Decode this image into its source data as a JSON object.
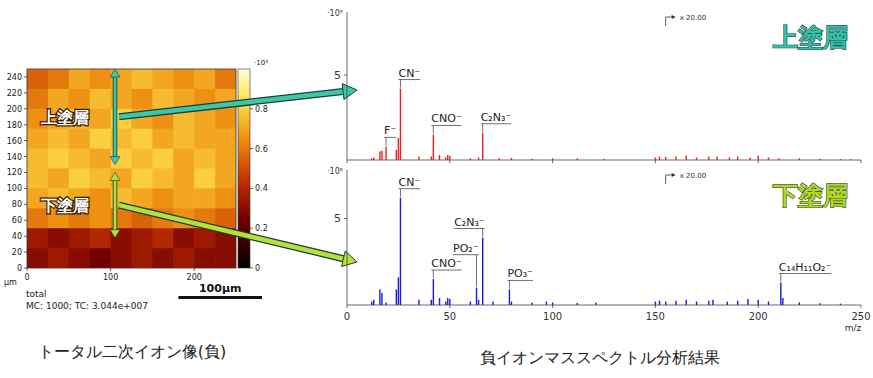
{
  "figure_caption": "負イオンマススペクトル分析結果",
  "chart_data": [
    {
      "type": "heatmap",
      "title": "トータル二次イオン像(負)",
      "x_label": "µm",
      "xlim": [
        0,
        250
      ],
      "ylim": [
        0,
        250
      ],
      "xticks": [
        0,
        100,
        200
      ],
      "yticks": [
        0,
        20,
        40,
        60,
        80,
        100,
        120,
        140,
        160,
        180,
        200,
        220,
        240
      ],
      "x": [
        12.5,
        37.5,
        62.5,
        87.5,
        112.5,
        137.5,
        162.5,
        187.5,
        212.5,
        237.5
      ],
      "y": [
        237.5,
        212.5,
        187.5,
        162.5,
        137.5,
        112.5,
        87.5,
        62.5,
        37.5,
        12.5
      ],
      "cells": [
        [
          0.55,
          0.6,
          0.7,
          0.65,
          0.7,
          0.75,
          0.7,
          0.65,
          0.7,
          0.6
        ],
        [
          0.6,
          0.7,
          0.65,
          0.75,
          0.7,
          0.65,
          0.75,
          0.7,
          0.65,
          0.7
        ],
        [
          0.65,
          0.7,
          0.75,
          0.7,
          0.8,
          0.7,
          0.65,
          0.75,
          0.7,
          0.65
        ],
        [
          0.7,
          0.75,
          0.7,
          0.8,
          0.75,
          0.8,
          0.7,
          0.75,
          0.7,
          0.7
        ],
        [
          0.75,
          0.8,
          0.75,
          0.7,
          0.8,
          0.75,
          0.8,
          0.7,
          0.75,
          0.7
        ],
        [
          0.75,
          0.7,
          0.8,
          0.75,
          0.7,
          0.8,
          0.75,
          0.7,
          0.8,
          0.7
        ],
        [
          0.7,
          0.75,
          0.7,
          0.65,
          0.75,
          0.7,
          0.65,
          0.7,
          0.7,
          0.65
        ],
        [
          0.6,
          0.65,
          0.6,
          0.65,
          0.6,
          0.55,
          0.6,
          0.65,
          0.6,
          0.55
        ],
        [
          0.35,
          0.3,
          0.35,
          0.4,
          0.3,
          0.35,
          0.4,
          0.3,
          0.35,
          0.3
        ],
        [
          0.3,
          0.35,
          0.3,
          0.25,
          0.3,
          0.35,
          0.3,
          0.35,
          0.3,
          0.3
        ]
      ],
      "colorbar": {
        "range": [
          0,
          1
        ],
        "ticks": [
          0,
          0.2,
          0.4,
          0.6,
          0.8
        ],
        "label": "·10³"
      },
      "annotations": [
        "total",
        "MC: 1000; TC: 3.044e+007"
      ],
      "scale_bar": {
        "length": 100,
        "label": "100µm"
      },
      "layers": [
        {
          "label": "上塗層",
          "range": [
            130,
            250
          ]
        },
        {
          "label": "下塗層",
          "range": [
            38,
            120
          ]
        }
      ]
    },
    {
      "type": "stem",
      "title": "上塗層",
      "color": "#e8211f",
      "y_label": "·10⁵",
      "xlim": [
        0,
        250
      ],
      "xticks": [
        0,
        50,
        100,
        150,
        200,
        250
      ],
      "ylim": [
        0,
        8.7
      ],
      "yticks": [
        5
      ],
      "tick_labels": "y",
      "x": [
        12,
        13,
        16,
        17,
        19,
        24,
        25,
        26,
        35,
        41,
        42,
        45,
        48,
        49,
        50,
        60,
        64,
        66,
        74,
        80,
        90,
        100,
        112,
        125,
        150,
        152,
        155,
        160,
        165,
        170,
        176,
        180,
        186,
        190,
        196,
        200,
        205,
        210,
        220,
        230,
        240,
        245
      ],
      "values": [
        0.1,
        0.15,
        0.5,
        0.55,
        0.8,
        0.6,
        1.3,
        4.2,
        0.2,
        0.2,
        1.5,
        0.3,
        0.15,
        0.3,
        0.25,
        0.1,
        0.15,
        1.6,
        0.1,
        0.12,
        0.08,
        0.1,
        0.1,
        0.06,
        0.15,
        0.2,
        0.18,
        0.2,
        0.25,
        0.15,
        0.2,
        0.2,
        0.15,
        0.2,
        0.15,
        0.25,
        0.15,
        0.1,
        0.1,
        0.08,
        0.06,
        0.05
      ],
      "peak_labels": [
        {
          "x": 19,
          "label": "F⁻"
        },
        {
          "x": 26,
          "label": "CN⁻"
        },
        {
          "x": 42,
          "label": "CNO⁻"
        },
        {
          "x": 66,
          "label": "C₂N₃⁻"
        }
      ],
      "annotations": [
        {
          "x": 155,
          "label": "x 20.00"
        }
      ]
    },
    {
      "type": "stem",
      "title": "下塗層",
      "color": "#1a1adb",
      "y_label": "·10⁵",
      "x_label": "m/z",
      "xlim": [
        0,
        250
      ],
      "xticks": [
        0,
        50,
        100,
        150,
        200,
        250
      ],
      "ylim": [
        0,
        7.8
      ],
      "yticks": [
        5
      ],
      "x": [
        12,
        13,
        16,
        17,
        19,
        24,
        25,
        26,
        35,
        41,
        42,
        45,
        48,
        49,
        50,
        60,
        63,
        64,
        66,
        71,
        79,
        80,
        90,
        97,
        100,
        112,
        121,
        150,
        152,
        155,
        160,
        165,
        170,
        176,
        178,
        185,
        190,
        195,
        200,
        205,
        211,
        212,
        220,
        230,
        240
      ],
      "values": [
        0.2,
        0.3,
        0.9,
        0.7,
        0.15,
        0.9,
        1.6,
        6.2,
        0.3,
        0.3,
        1.5,
        0.4,
        0.2,
        0.4,
        0.35,
        0.2,
        1.0,
        0.3,
        3.9,
        0.2,
        0.9,
        0.2,
        0.15,
        0.2,
        0.15,
        0.12,
        0.15,
        0.2,
        0.25,
        0.2,
        0.25,
        0.3,
        0.2,
        0.25,
        0.3,
        0.2,
        0.25,
        0.35,
        0.3,
        0.2,
        1.3,
        0.4,
        0.15,
        0.1,
        0.08
      ],
      "peak_labels": [
        {
          "x": 26,
          "label": "CN⁻"
        },
        {
          "x": 42,
          "label": "CNO⁻"
        },
        {
          "x": 63,
          "label": "PO₂⁻"
        },
        {
          "x": 66,
          "label": "C₂N₃⁻"
        },
        {
          "x": 79,
          "label": "PO₃⁻"
        },
        {
          "x": 211,
          "label": "C₁₄H₁₁O₂⁻"
        }
      ],
      "annotations": [
        {
          "x": 155,
          "label": "x 20.00"
        }
      ]
    }
  ]
}
